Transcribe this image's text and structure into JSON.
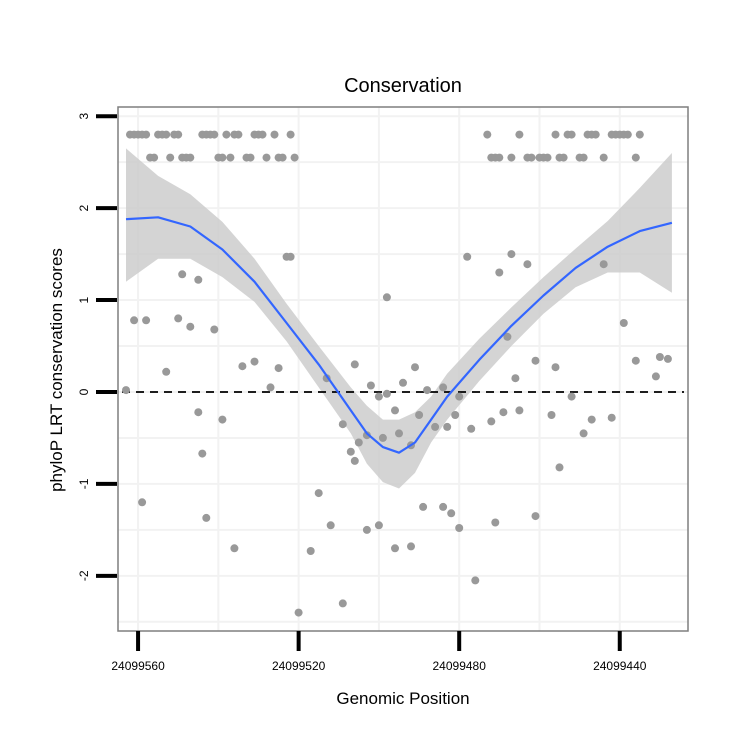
{
  "chart_data": {
    "type": "scatter",
    "title": "Conservation",
    "xlabel": "Genomic Position",
    "ylabel": "phyloP LRT conservation scores",
    "x_reversed": true,
    "xlim": [
      24099423,
      24099565
    ],
    "ylim": [
      -2.6,
      3.1
    ],
    "x_ticks": [
      24099560,
      24099520,
      24099480,
      24099440
    ],
    "x_tick_labels": [
      "24099560",
      "24099520",
      "24099480",
      "24099440"
    ],
    "y_ticks": [
      -2,
      -1,
      0,
      1,
      2,
      3
    ],
    "y_tick_labels": [
      "-2",
      "-1",
      "0",
      "1",
      "2",
      "3"
    ],
    "reference_line": {
      "y": 0,
      "style": "dashed"
    },
    "grid": true,
    "colors": {
      "points": "#999999",
      "smooth_line": "#3366ff",
      "confidence_band": "#cccccc",
      "reference": "#000000",
      "frame": "#7f7f7f",
      "grid": "#f2f2f2"
    },
    "series": [
      {
        "name": "scores",
        "kind": "points",
        "points": [
          [
            24099562,
            2.8
          ],
          [
            24099561,
            2.8
          ],
          [
            24099560,
            2.8
          ],
          [
            24099559,
            2.8
          ],
          [
            24099558,
            2.8
          ],
          [
            24099557,
            2.55
          ],
          [
            24099556,
            2.55
          ],
          [
            24099555,
            2.8
          ],
          [
            24099554,
            2.8
          ],
          [
            24099553,
            2.8
          ],
          [
            24099552,
            2.55
          ],
          [
            24099551,
            2.8
          ],
          [
            24099550,
            2.8
          ],
          [
            24099549,
            2.55
          ],
          [
            24099548,
            2.55
          ],
          [
            24099547,
            2.55
          ],
          [
            24099544,
            2.8
          ],
          [
            24099543,
            2.8
          ],
          [
            24099542,
            2.8
          ],
          [
            24099541,
            2.8
          ],
          [
            24099540,
            2.55
          ],
          [
            24099539,
            2.55
          ],
          [
            24099538,
            2.8
          ],
          [
            24099537,
            2.55
          ],
          [
            24099536,
            2.8
          ],
          [
            24099535,
            2.8
          ],
          [
            24099533,
            2.55
          ],
          [
            24099532,
            2.55
          ],
          [
            24099531,
            2.8
          ],
          [
            24099530,
            2.8
          ],
          [
            24099529,
            2.8
          ],
          [
            24099528,
            2.55
          ],
          [
            24099526,
            2.8
          ],
          [
            24099525,
            2.55
          ],
          [
            24099524,
            2.55
          ],
          [
            24099522,
            2.8
          ],
          [
            24099521,
            2.55
          ],
          [
            24099473,
            2.8
          ],
          [
            24099472,
            2.55
          ],
          [
            24099471,
            2.55
          ],
          [
            24099470,
            2.55
          ],
          [
            24099467,
            2.55
          ],
          [
            24099465,
            2.8
          ],
          [
            24099463,
            2.55
          ],
          [
            24099462,
            2.55
          ],
          [
            24099460,
            2.55
          ],
          [
            24099459,
            2.55
          ],
          [
            24099458,
            2.55
          ],
          [
            24099456,
            2.8
          ],
          [
            24099455,
            2.55
          ],
          [
            24099454,
            2.55
          ],
          [
            24099453,
            2.8
          ],
          [
            24099452,
            2.8
          ],
          [
            24099450,
            2.55
          ],
          [
            24099449,
            2.55
          ],
          [
            24099448,
            2.8
          ],
          [
            24099447,
            2.8
          ],
          [
            24099446,
            2.8
          ],
          [
            24099444,
            2.55
          ],
          [
            24099442,
            2.8
          ],
          [
            24099441,
            2.8
          ],
          [
            24099440,
            2.8
          ],
          [
            24099439,
            2.8
          ],
          [
            24099438,
            2.8
          ],
          [
            24099436,
            2.55
          ],
          [
            24099435,
            2.8
          ],
          [
            24099523,
            1.47
          ],
          [
            24099522,
            1.47
          ],
          [
            24099478,
            1.47
          ],
          [
            24099467,
            1.5
          ],
          [
            24099463,
            1.39
          ],
          [
            24099444,
            1.39
          ],
          [
            24099549,
            1.28
          ],
          [
            24099545,
            1.22
          ],
          [
            24099470,
            1.3
          ],
          [
            24099498,
            1.03
          ],
          [
            24099563,
            0.02
          ],
          [
            24099561,
            0.78
          ],
          [
            24099558,
            0.78
          ],
          [
            24099553,
            0.22
          ],
          [
            24099550,
            0.8
          ],
          [
            24099547,
            0.71
          ],
          [
            24099541,
            0.68
          ],
          [
            24099534,
            0.28
          ],
          [
            24099531,
            0.33
          ],
          [
            24099527,
            0.05
          ],
          [
            24099525,
            0.26
          ],
          [
            24099513,
            0.15
          ],
          [
            24099506,
            0.3
          ],
          [
            24099502,
            0.07
          ],
          [
            24099500,
            -0.05
          ],
          [
            24099498,
            -0.02
          ],
          [
            24099494,
            0.1
          ],
          [
            24099491,
            0.27
          ],
          [
            24099488,
            0.02
          ],
          [
            24099484,
            0.05
          ],
          [
            24099480,
            -0.05
          ],
          [
            24099468,
            0.6
          ],
          [
            24099466,
            0.15
          ],
          [
            24099461,
            0.34
          ],
          [
            24099456,
            0.27
          ],
          [
            24099439,
            0.75
          ],
          [
            24099436,
            0.34
          ],
          [
            24099430,
            0.38
          ],
          [
            24099428,
            0.36
          ],
          [
            24099431,
            0.17
          ],
          [
            24099545,
            -0.22
          ],
          [
            24099544,
            -0.67
          ],
          [
            24099539,
            -0.3
          ],
          [
            24099509,
            -0.35
          ],
          [
            24099507,
            -0.65
          ],
          [
            24099506,
            -0.75
          ],
          [
            24099505,
            -0.55
          ],
          [
            24099503,
            -0.47
          ],
          [
            24099499,
            -0.5
          ],
          [
            24099496,
            -0.2
          ],
          [
            24099495,
            -0.45
          ],
          [
            24099492,
            -0.58
          ],
          [
            24099490,
            -0.25
          ],
          [
            24099486,
            -0.38
          ],
          [
            24099483,
            -0.38
          ],
          [
            24099481,
            -0.25
          ],
          [
            24099477,
            -0.4
          ],
          [
            24099472,
            -0.32
          ],
          [
            24099469,
            -0.22
          ],
          [
            24099465,
            -0.2
          ],
          [
            24099457,
            -0.25
          ],
          [
            24099452,
            -0.05
          ],
          [
            24099449,
            -0.45
          ],
          [
            24099447,
            -0.3
          ],
          [
            24099442,
            -0.28
          ],
          [
            24099559,
            -1.2
          ],
          [
            24099543,
            -1.37
          ],
          [
            24099536,
            -1.7
          ],
          [
            24099520,
            -2.4
          ],
          [
            24099517,
            -1.73
          ],
          [
            24099515,
            -1.1
          ],
          [
            24099512,
            -1.45
          ],
          [
            24099509,
            -2.3
          ],
          [
            24099503,
            -1.5
          ],
          [
            24099500,
            -1.45
          ],
          [
            24099496,
            -1.7
          ],
          [
            24099492,
            -1.68
          ],
          [
            24099489,
            -1.25
          ],
          [
            24099484,
            -1.25
          ],
          [
            24099482,
            -1.32
          ],
          [
            24099480,
            -1.48
          ],
          [
            24099476,
            -2.05
          ],
          [
            24099471,
            -1.42
          ],
          [
            24099461,
            -1.35
          ],
          [
            24099455,
            -0.82
          ]
        ]
      },
      {
        "name": "loess fit",
        "kind": "smooth",
        "points": [
          [
            24099563,
            1.88
          ],
          [
            24099555,
            1.9
          ],
          [
            24099547,
            1.8
          ],
          [
            24099539,
            1.55
          ],
          [
            24099531,
            1.2
          ],
          [
            24099523,
            0.75
          ],
          [
            24099515,
            0.3
          ],
          [
            24099507,
            -0.2
          ],
          [
            24099503,
            -0.45
          ],
          [
            24099499,
            -0.6
          ],
          [
            24099495,
            -0.66
          ],
          [
            24099491,
            -0.55
          ],
          [
            24099487,
            -0.3
          ],
          [
            24099483,
            -0.05
          ],
          [
            24099475,
            0.35
          ],
          [
            24099467,
            0.72
          ],
          [
            24099459,
            1.05
          ],
          [
            24099451,
            1.35
          ],
          [
            24099443,
            1.58
          ],
          [
            24099435,
            1.75
          ],
          [
            24099427,
            1.84
          ]
        ],
        "band": [
          [
            24099563,
            1.2,
            2.65
          ],
          [
            24099555,
            1.45,
            2.35
          ],
          [
            24099547,
            1.45,
            2.15
          ],
          [
            24099539,
            1.25,
            1.85
          ],
          [
            24099531,
            0.98,
            1.45
          ],
          [
            24099523,
            0.55,
            0.96
          ],
          [
            24099515,
            0.05,
            0.5
          ],
          [
            24099507,
            -0.45,
            0.05
          ],
          [
            24099503,
            -0.78,
            -0.15
          ],
          [
            24099499,
            -0.98,
            -0.3
          ],
          [
            24099495,
            -1.05,
            -0.3
          ],
          [
            24099491,
            -0.88,
            -0.22
          ],
          [
            24099487,
            -0.55,
            -0.05
          ],
          [
            24099483,
            -0.3,
            0.2
          ],
          [
            24099475,
            0.12,
            0.58
          ],
          [
            24099467,
            0.5,
            0.92
          ],
          [
            24099459,
            0.85,
            1.25
          ],
          [
            24099451,
            1.14,
            1.56
          ],
          [
            24099443,
            1.3,
            1.86
          ],
          [
            24099435,
            1.3,
            2.22
          ],
          [
            24099427,
            1.08,
            2.6
          ]
        ]
      }
    ]
  }
}
